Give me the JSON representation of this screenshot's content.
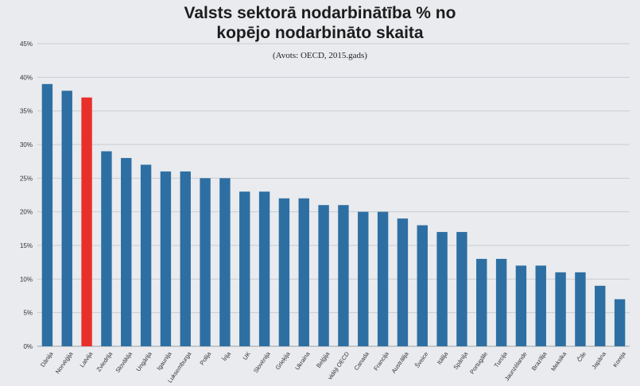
{
  "chart_data": {
    "type": "bar",
    "title_line1": "Valsts sektorā nodarbinātība % no",
    "title_line2": "kopējo nodarbināto skaita",
    "subtitle": "(Avots: OECD, 2015.gads)",
    "xlabel": "",
    "ylabel": "",
    "ylim": [
      0,
      45
    ],
    "ytick_step": 5,
    "ytick_suffix": "%",
    "grid": true,
    "legend": "none",
    "categories": [
      "Dānija",
      "Norvēģija",
      "Latvija",
      "Zviedrija",
      "Slovākija",
      "Ungārija",
      "Igaunija",
      "Luksemburga",
      "Polija",
      "Īrija",
      "UK",
      "Slovēnija",
      "Grieķija",
      "Ukraina",
      "Beļģija",
      "vidēji OECD",
      "Canada",
      "Francija",
      "Austrālija",
      "Šveice",
      "Itālija",
      "Spānija",
      "Portugāle",
      "Turcija",
      "Jaunzēlande",
      "Brazīlija",
      "Meksika",
      "Čīle",
      "Japāna",
      "Koreja"
    ],
    "values": [
      39,
      38,
      37,
      29,
      28,
      27,
      26,
      26,
      25,
      25,
      23,
      23,
      22,
      22,
      21,
      21,
      20,
      20,
      19,
      18,
      17,
      17,
      13,
      13,
      12,
      12,
      11,
      11,
      9,
      7
    ],
    "highlight_index": 2,
    "colors": {
      "bar": "#2e6fa3",
      "highlight": "#e8302a",
      "grid": "#c9cdd2",
      "axis_text": "#333333"
    }
  }
}
